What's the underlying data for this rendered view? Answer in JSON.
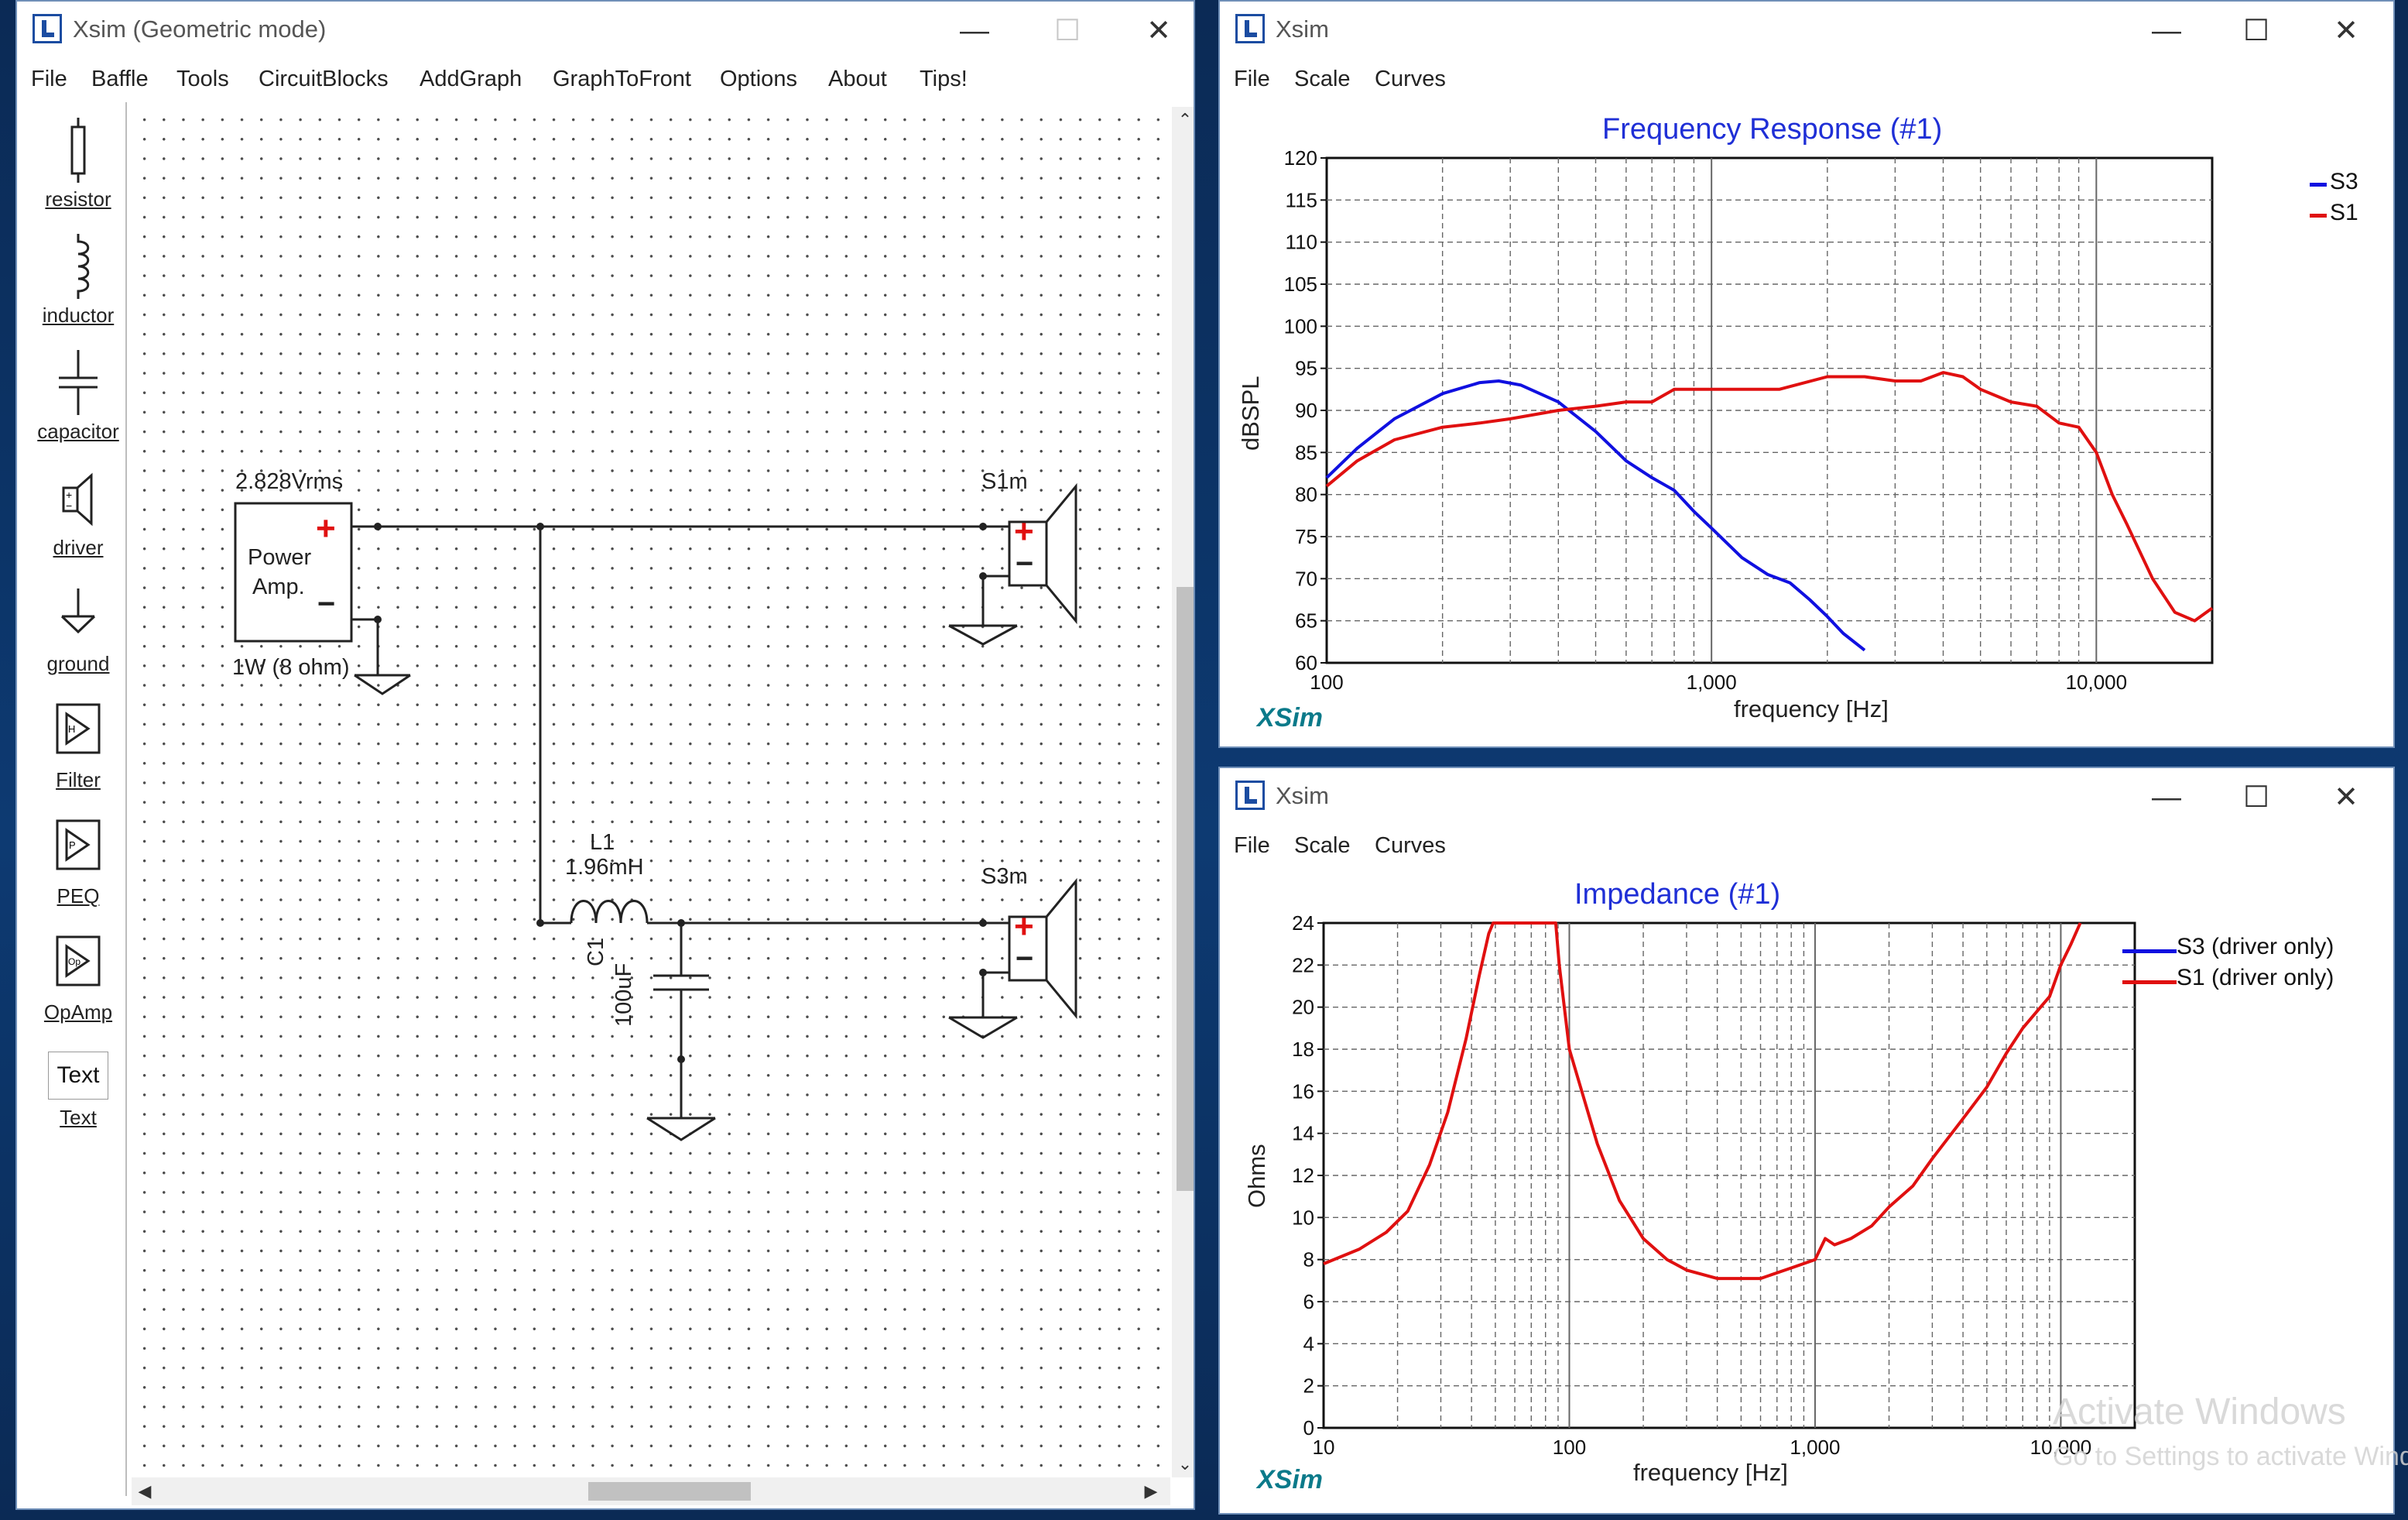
{
  "colors": {
    "accent_blue": "#1f2fd6",
    "curve_blue": "#1010e0",
    "curve_red": "#e01010",
    "logo_teal": "#0b7a8a"
  },
  "main_window": {
    "title": "Xsim (Geometric mode)",
    "menu": [
      "File",
      "Baffle",
      "Tools",
      "CircuitBlocks",
      "AddGraph",
      "GraphToFront",
      "Options",
      "About",
      "Tips!"
    ],
    "tools": [
      {
        "label": "resistor",
        "icon": "resistor-icon"
      },
      {
        "label": "inductor",
        "icon": "inductor-icon"
      },
      {
        "label": "capacitor",
        "icon": "capacitor-icon"
      },
      {
        "label": "driver",
        "icon": "driver-icon"
      },
      {
        "label": "ground",
        "icon": "ground-icon"
      },
      {
        "label": "Filter",
        "icon": "filter-icon"
      },
      {
        "label": "PEQ",
        "icon": "peq-icon"
      },
      {
        "label": "OpAmp",
        "icon": "opamp-icon"
      },
      {
        "label": "Text",
        "icon": "text-icon",
        "icon_text": "Text"
      }
    ],
    "schematic": {
      "source_voltage": "2.828Vrms",
      "amp_line1": "Power",
      "amp_line2": "Amp.",
      "amp_plus": "+",
      "amp_minus": "−",
      "amp_rating": "1W (8 ohm)",
      "driver1": "S1m",
      "driver2": "S3m",
      "inductor_name": "L1",
      "inductor_value": "1.96mH",
      "capacitor_name": "C1",
      "capacitor_value": "100uF",
      "driver_plus": "+",
      "driver_minus": "−"
    }
  },
  "freq_window": {
    "title": "Xsim",
    "menu": [
      "File",
      "Scale",
      "Curves"
    ],
    "logo": "XSim",
    "chart_data": {
      "type": "line",
      "title": "Frequency Response (#1)",
      "xlabel": "frequency [Hz]",
      "ylabel": "dBSPL",
      "x_scale": "log",
      "xlim": [
        100,
        20000
      ],
      "ylim": [
        60,
        120
      ],
      "x_ticks": [
        {
          "value": 100,
          "label": "100"
        },
        {
          "value": 1000,
          "label": "1,000"
        },
        {
          "value": 10000,
          "label": "10,000"
        }
      ],
      "y_ticks": [
        60,
        65,
        70,
        75,
        80,
        85,
        90,
        95,
        100,
        105,
        110,
        115,
        120
      ],
      "grid": true,
      "legend": "right",
      "series": [
        {
          "name": "S3",
          "color": "#1010e0",
          "x": [
            100,
            120,
            150,
            200,
            250,
            280,
            320,
            400,
            500,
            600,
            700,
            800,
            900,
            1000,
            1200,
            1400,
            1600,
            1800,
            2000,
            2200,
            2500
          ],
          "y": [
            82,
            85.5,
            89,
            92,
            93.3,
            93.5,
            93,
            91,
            87.5,
            84,
            82,
            80.5,
            78,
            76,
            72.5,
            70.5,
            69.5,
            67.5,
            65.5,
            63.5,
            61.5
          ]
        },
        {
          "name": "S1",
          "color": "#e01010",
          "x": [
            100,
            120,
            150,
            200,
            250,
            300,
            400,
            500,
            600,
            700,
            800,
            1000,
            1200,
            1500,
            2000,
            2500,
            3000,
            3500,
            4000,
            4500,
            5000,
            6000,
            7000,
            8000,
            9000,
            10000,
            11000,
            12000,
            14000,
            16000,
            18000,
            20000
          ],
          "y": [
            81,
            84,
            86.5,
            88,
            88.5,
            89,
            90,
            90.5,
            91,
            91,
            92.5,
            92.5,
            92.5,
            92.5,
            94,
            94,
            93.5,
            93.5,
            94.5,
            94,
            92.5,
            91,
            90.5,
            88.5,
            88,
            85,
            80,
            76.5,
            70,
            66,
            65,
            66.5
          ]
        }
      ]
    }
  },
  "imp_window": {
    "title": "Xsim",
    "menu": [
      "File",
      "Scale",
      "Curves"
    ],
    "logo": "XSim",
    "chart_data": {
      "type": "line",
      "title": "Impedance (#1)",
      "xlabel": "frequency [Hz]",
      "ylabel": "Ohms",
      "x_scale": "log",
      "xlim": [
        10,
        20000
      ],
      "ylim": [
        0,
        24
      ],
      "x_ticks": [
        {
          "value": 10,
          "label": "10"
        },
        {
          "value": 100,
          "label": "100"
        },
        {
          "value": 1000,
          "label": "1,000"
        },
        {
          "value": 10000,
          "label": "10,000"
        }
      ],
      "y_ticks": [
        0,
        2,
        4,
        6,
        8,
        10,
        12,
        14,
        16,
        18,
        20,
        22,
        24
      ],
      "grid": true,
      "legend": "right",
      "series": [
        {
          "name": "S3 (driver only)",
          "color": "#1010e0",
          "x": [],
          "y": []
        },
        {
          "name": "S1 (driver only)",
          "color": "#e01010",
          "x": [
            10,
            14,
            18,
            22,
            27,
            32,
            38,
            43,
            47,
            49,
            88,
            91,
            100,
            130,
            160,
            200,
            250,
            300,
            400,
            600,
            800,
            1000,
            1100,
            1200,
            1400,
            1700,
            2000,
            2500,
            3000,
            4000,
            5000,
            6000,
            7000,
            8000,
            9000,
            10000,
            11000,
            12000
          ],
          "y": [
            7.8,
            8.5,
            9.3,
            10.3,
            12.5,
            15,
            18.5,
            21.5,
            23.5,
            24,
            24,
            22,
            18,
            13.5,
            10.8,
            9,
            8,
            7.5,
            7.1,
            7.1,
            7.6,
            8,
            9,
            8.7,
            9,
            9.6,
            10.5,
            11.5,
            12.8,
            14.7,
            16.2,
            17.8,
            19,
            19.8,
            20.5,
            22,
            23,
            24
          ]
        }
      ]
    }
  },
  "watermark": {
    "line1": "Activate Windows",
    "line2": "Go to Settings to activate Windows."
  }
}
